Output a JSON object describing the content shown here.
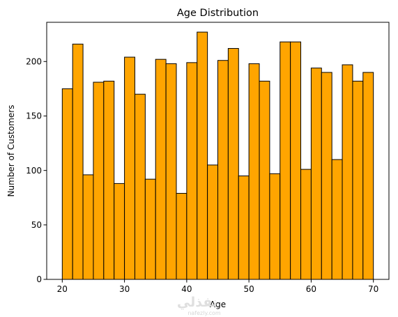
{
  "chart_data": {
    "type": "bar",
    "title": "Age Distribution",
    "xlabel": "Age",
    "ylabel": "Number of Customers",
    "xlim": [
      17.5,
      72.5
    ],
    "ylim": [
      0,
      236
    ],
    "x_ticks": [
      20,
      30,
      40,
      50,
      60,
      70
    ],
    "y_ticks": [
      0,
      50,
      100,
      150,
      200
    ],
    "bin_edges": [
      20.0,
      21.6667,
      23.3333,
      25.0,
      26.6667,
      28.3333,
      30.0,
      31.6667,
      33.3333,
      35.0,
      36.6667,
      38.3333,
      40.0,
      41.6667,
      43.3333,
      45.0,
      46.6667,
      48.3333,
      50.0,
      51.6667,
      53.3333,
      55.0,
      56.6667,
      58.3333,
      60.0,
      61.6667,
      63.3333,
      65.0,
      66.6667,
      68.3333,
      70.0
    ],
    "values": [
      175,
      216,
      96,
      181,
      182,
      88,
      204,
      170,
      92,
      202,
      198,
      79,
      199,
      227,
      105,
      201,
      212,
      95,
      198,
      182,
      97,
      218,
      218,
      101,
      194,
      190,
      110,
      197,
      182,
      190
    ],
    "bar_color": "#ffa500",
    "edge_color": "#000000",
    "grid": false
  },
  "watermark": {
    "arabic": "نفذلي",
    "latin": "nafezly.com"
  }
}
